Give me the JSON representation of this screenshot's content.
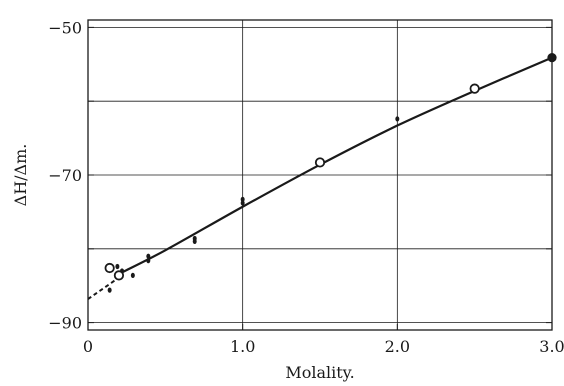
{
  "chart_data": {
    "type": "scatter",
    "xlabel": "Molality.",
    "ylabel": "ΔH/Δm.",
    "xlim": [
      0,
      3.0
    ],
    "ylim": [
      -91,
      -49
    ],
    "y_axis_inverted_sign_display": "tick labels printed without decimals",
    "x_ticks": [
      {
        "value": 0,
        "label": "0"
      },
      {
        "value": 1.0,
        "label": "1.0"
      },
      {
        "value": 2.0,
        "label": "2.0"
      },
      {
        "value": 3.0,
        "label": "3.0"
      }
    ],
    "y_ticks": [
      {
        "value": -50,
        "label": "−50"
      },
      {
        "value": -60,
        "label": ""
      },
      {
        "value": -70,
        "label": "−70"
      },
      {
        "value": -80,
        "label": ""
      },
      {
        "value": -90,
        "label": "−90"
      }
    ],
    "grid": true,
    "series": [
      {
        "marker": "small-dot",
        "points": [
          {
            "x": 0.14,
            "y": -85.6
          },
          {
            "x": 0.19,
            "y": -82.4
          },
          {
            "x": 0.2,
            "y": -83.4
          },
          {
            "x": 0.22,
            "y": -83.0
          },
          {
            "x": 0.29,
            "y": -83.6
          },
          {
            "x": 0.39,
            "y": -81.0
          },
          {
            "x": 0.39,
            "y": -81.6
          },
          {
            "x": 0.69,
            "y": -78.6
          },
          {
            "x": 0.69,
            "y": -79.0
          },
          {
            "x": 1.0,
            "y": -73.3
          },
          {
            "x": 1.0,
            "y": -73.8
          },
          {
            "x": 2.0,
            "y": -62.4
          }
        ]
      },
      {
        "marker": "open-circle",
        "points": [
          {
            "x": 0.14,
            "y": -82.6
          },
          {
            "x": 0.2,
            "y": -83.6
          },
          {
            "x": 1.5,
            "y": -68.3
          },
          {
            "x": 2.5,
            "y": -58.3
          }
        ]
      },
      {
        "marker": "filled-circle",
        "points": [
          {
            "x": 3.0,
            "y": -54.1
          }
        ]
      }
    ],
    "fit_curve": {
      "style": "solid",
      "points": [
        [
          0.2,
          -83.4
        ],
        [
          0.5,
          -80.2
        ],
        [
          1.0,
          -74.3
        ],
        [
          1.5,
          -68.6
        ],
        [
          2.0,
          -63.3
        ],
        [
          2.5,
          -58.6
        ],
        [
          3.0,
          -54.1
        ]
      ]
    },
    "extrapolation": {
      "style": "dashed",
      "points": [
        [
          0.0,
          -86.8
        ],
        [
          0.2,
          -83.9
        ]
      ]
    },
    "colors": {
      "ink": "#1a1a1a",
      "grid": "#1a1a1a",
      "background": "#ffffff"
    }
  }
}
